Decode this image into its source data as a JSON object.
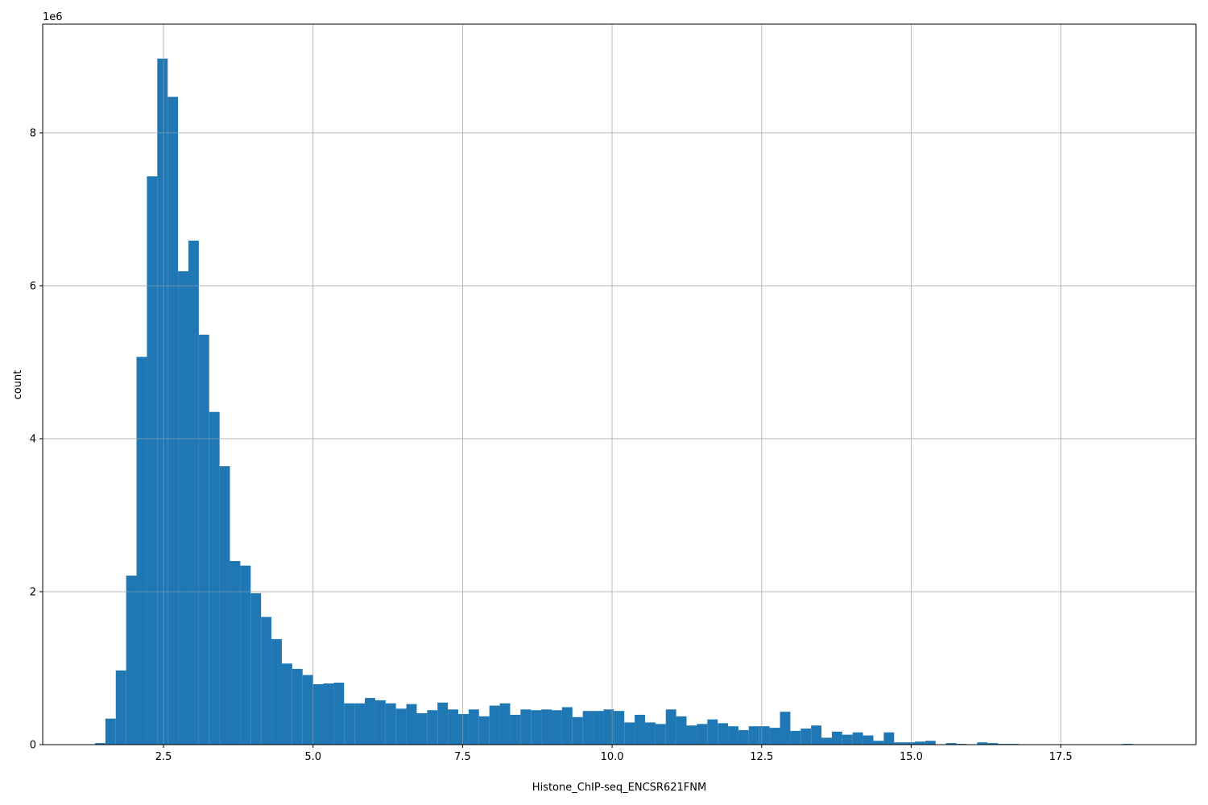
{
  "chart_data": {
    "type": "bar",
    "subtype": "histogram",
    "title": "",
    "xlabel": "Histone_ChIP-seq_ENCSR621FNM",
    "ylabel": "count",
    "y_offset_label": "1e6",
    "xlim": [
      0.48,
      19.76
    ],
    "ylim": [
      0,
      9420000
    ],
    "grid": true,
    "bar_color": "#1f77b4",
    "x_ticks": [
      2.5,
      5.0,
      7.5,
      10.0,
      12.5,
      15.0,
      17.5
    ],
    "x_tick_labels": [
      "2.5",
      "5.0",
      "7.5",
      "10.0",
      "12.5",
      "15.0",
      "17.5"
    ],
    "y_ticks": [
      0,
      2000000,
      4000000,
      6000000,
      8000000
    ],
    "y_tick_labels": [
      "0",
      "2",
      "4",
      "6",
      "8"
    ],
    "bin_start": 1.355,
    "bin_width": 0.1735,
    "counts": [
      20000,
      340000,
      970000,
      2210000,
      5070000,
      7430000,
      8970000,
      8470000,
      6190000,
      6590000,
      5360000,
      4350000,
      3640000,
      2400000,
      2340000,
      1980000,
      1670000,
      1380000,
      1060000,
      990000,
      910000,
      790000,
      800000,
      810000,
      540000,
      540000,
      610000,
      580000,
      540000,
      470000,
      530000,
      410000,
      450000,
      550000,
      460000,
      400000,
      460000,
      370000,
      510000,
      540000,
      390000,
      460000,
      450000,
      460000,
      450000,
      490000,
      360000,
      440000,
      440000,
      460000,
      440000,
      290000,
      390000,
      290000,
      270000,
      460000,
      370000,
      250000,
      270000,
      330000,
      280000,
      240000,
      190000,
      240000,
      240000,
      220000,
      430000,
      180000,
      210000,
      250000,
      90000,
      170000,
      130000,
      160000,
      120000,
      50000,
      160000,
      30000,
      30000,
      40000,
      50000,
      0,
      20000,
      10000,
      0,
      30000,
      20000,
      10000,
      10000,
      0,
      0,
      0,
      0,
      0,
      0,
      0,
      0,
      0,
      0,
      10000
    ]
  }
}
